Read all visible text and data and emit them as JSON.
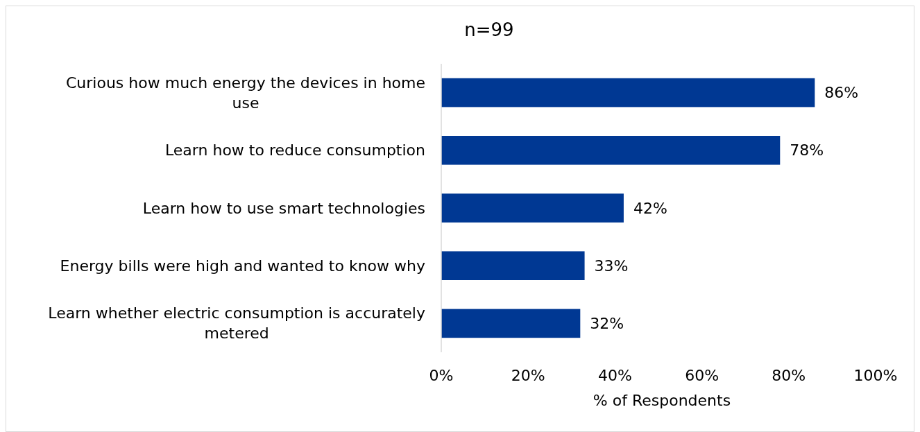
{
  "chart_data": {
    "type": "bar",
    "orientation": "horizontal",
    "title": "n=99",
    "xlabel": "% of Respondents",
    "categories": [
      "Curious how much energy the devices in home use",
      "Learn how to reduce consumption",
      "Learn how to use smart technologies",
      "Energy bills were high and wanted to know why",
      "Learn whether electric consumption is accurately metered"
    ],
    "values": [
      86,
      78,
      42,
      33,
      32
    ],
    "value_labels": [
      "86%",
      "78%",
      "42%",
      "33%",
      "32%"
    ],
    "color": "#003893",
    "xlim": [
      0,
      100
    ],
    "xticks": [
      {
        "value": 0,
        "label": "0%"
      },
      {
        "value": 20,
        "label": "20%"
      },
      {
        "value": 40,
        "label": "40%"
      },
      {
        "value": 60,
        "label": "60%"
      },
      {
        "value": 80,
        "label": "80%"
      },
      {
        "value": 100,
        "label": "100%"
      }
    ],
    "grid": false
  }
}
